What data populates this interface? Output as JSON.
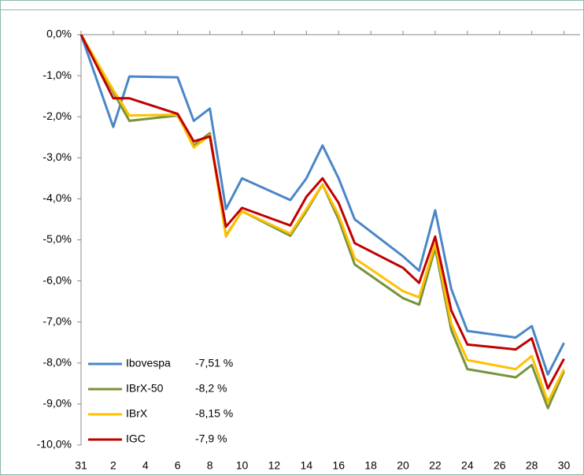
{
  "chart_data": {
    "type": "line",
    "x": [
      0,
      2,
      3,
      6,
      7,
      8,
      9,
      10,
      13,
      14,
      15,
      16,
      17,
      20,
      21,
      22,
      23,
      24,
      27,
      28,
      29,
      30
    ],
    "xlim": [
      0,
      31
    ],
    "xticks": [
      {
        "value": 0,
        "label": "31"
      },
      2,
      4,
      6,
      8,
      10,
      12,
      14,
      16,
      18,
      20,
      22,
      24,
      26,
      28,
      30
    ],
    "ylim": [
      -10,
      0
    ],
    "yticks": [
      {
        "value": 0,
        "label": "0,0%"
      },
      {
        "value": -1,
        "label": "-1,0%"
      },
      {
        "value": -2,
        "label": "-2,0%"
      },
      {
        "value": -3,
        "label": "-3,0%"
      },
      {
        "value": -4,
        "label": "-4,0%"
      },
      {
        "value": -5,
        "label": "-5,0%"
      },
      {
        "value": -6,
        "label": "-6,0%"
      },
      {
        "value": -7,
        "label": "-7,0%"
      },
      {
        "value": -8,
        "label": "-8,0%"
      },
      {
        "value": -9,
        "label": "-9,0%"
      },
      {
        "value": -10,
        "label": "-10,0%"
      }
    ],
    "legend": "bottom-left",
    "series": [
      {
        "name": "Ibovespa",
        "legend_value": "-7,51 %",
        "color": "#4a86c8",
        "values": [
          0,
          -2.25,
          -1.02,
          -1.04,
          -2.1,
          -1.8,
          -4.25,
          -3.5,
          -4.03,
          -3.5,
          -2.7,
          -3.5,
          -4.5,
          -5.4,
          -5.75,
          -4.28,
          -6.2,
          -7.22,
          -7.38,
          -7.1,
          -8.28,
          -7.51
        ]
      },
      {
        "name": "IBrX-50",
        "legend_value": "-8,2 %",
        "color": "#77933c",
        "values": [
          0,
          -1.4,
          -2.1,
          -1.97,
          -2.7,
          -2.4,
          -4.9,
          -4.3,
          -4.9,
          -4.3,
          -3.65,
          -4.5,
          -5.6,
          -6.42,
          -6.58,
          -5.2,
          -7.2,
          -8.15,
          -8.35,
          -8.05,
          -9.1,
          -8.2
        ]
      },
      {
        "name": "IBrX",
        "legend_value": "-8,15 %",
        "color": "#ffc000",
        "values": [
          0,
          -1.35,
          -1.97,
          -1.95,
          -2.75,
          -2.45,
          -4.92,
          -4.3,
          -4.85,
          -4.25,
          -3.65,
          -4.4,
          -5.45,
          -6.25,
          -6.4,
          -5.1,
          -7.05,
          -7.93,
          -8.15,
          -7.83,
          -8.95,
          -8.15
        ]
      },
      {
        "name": "IGC",
        "legend_value": "-7,9 %",
        "color": "#c00000",
        "values": [
          0,
          -1.55,
          -1.55,
          -1.93,
          -2.6,
          -2.48,
          -4.68,
          -4.22,
          -4.65,
          -3.95,
          -3.5,
          -4.1,
          -5.08,
          -5.68,
          -6.05,
          -4.92,
          -6.72,
          -7.55,
          -7.67,
          -7.4,
          -8.62,
          -7.9
        ]
      }
    ]
  }
}
